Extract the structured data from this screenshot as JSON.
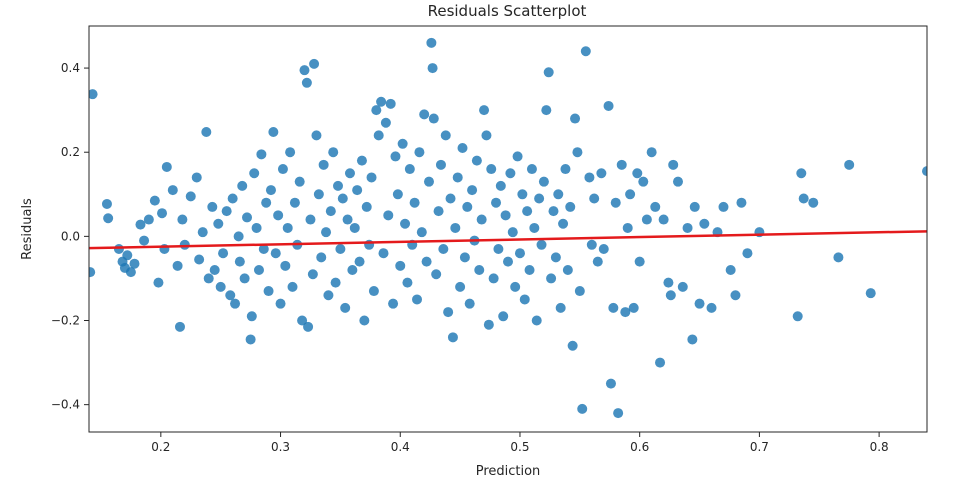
{
  "chart_data": {
    "type": "scatter",
    "title": "Residuals Scatterplot",
    "xlabel": "Prediction",
    "ylabel": "Residuals",
    "xlim": [
      0.14,
      0.84
    ],
    "ylim": [
      -0.465,
      0.5
    ],
    "xticks": [
      0.2,
      0.3,
      0.4,
      0.5,
      0.6,
      0.7,
      0.8
    ],
    "xtick_labels": [
      "0.2",
      "0.3",
      "0.4",
      "0.5",
      "0.6",
      "0.7",
      "0.8"
    ],
    "yticks": [
      -0.4,
      -0.2,
      0.0,
      0.2,
      0.4
    ],
    "ytick_labels": [
      "−0.4",
      "−0.2",
      "0.0",
      "0.2",
      "0.4"
    ],
    "grid": false,
    "marker_color": "#1f77b4",
    "fit_line_color": "#e41a1c",
    "fit_line": {
      "x": [
        0.14,
        0.84
      ],
      "y": [
        -0.028,
        0.012
      ]
    },
    "points": [
      [
        0.143,
        0.338
      ],
      [
        0.141,
        -0.085
      ],
      [
        0.155,
        0.077
      ],
      [
        0.156,
        0.043
      ],
      [
        0.165,
        -0.03
      ],
      [
        0.168,
        -0.06
      ],
      [
        0.17,
        -0.075
      ],
      [
        0.172,
        -0.045
      ],
      [
        0.175,
        -0.085
      ],
      [
        0.178,
        -0.065
      ],
      [
        0.183,
        0.028
      ],
      [
        0.186,
        -0.01
      ],
      [
        0.19,
        0.04
      ],
      [
        0.195,
        0.085
      ],
      [
        0.198,
        -0.11
      ],
      [
        0.201,
        0.055
      ],
      [
        0.203,
        -0.03
      ],
      [
        0.205,
        0.165
      ],
      [
        0.21,
        0.11
      ],
      [
        0.214,
        -0.07
      ],
      [
        0.216,
        -0.215
      ],
      [
        0.218,
        0.04
      ],
      [
        0.22,
        -0.02
      ],
      [
        0.225,
        0.095
      ],
      [
        0.23,
        0.14
      ],
      [
        0.232,
        -0.055
      ],
      [
        0.235,
        0.01
      ],
      [
        0.238,
        0.248
      ],
      [
        0.24,
        -0.1
      ],
      [
        0.243,
        0.07
      ],
      [
        0.245,
        -0.08
      ],
      [
        0.248,
        0.03
      ],
      [
        0.25,
        -0.12
      ],
      [
        0.252,
        -0.04
      ],
      [
        0.255,
        0.06
      ],
      [
        0.258,
        -0.14
      ],
      [
        0.26,
        0.09
      ],
      [
        0.262,
        -0.16
      ],
      [
        0.265,
        0.0
      ],
      [
        0.266,
        -0.06
      ],
      [
        0.268,
        0.12
      ],
      [
        0.27,
        -0.1
      ],
      [
        0.272,
        0.045
      ],
      [
        0.275,
        -0.245
      ],
      [
        0.276,
        -0.19
      ],
      [
        0.278,
        0.15
      ],
      [
        0.28,
        0.02
      ],
      [
        0.282,
        -0.08
      ],
      [
        0.284,
        0.195
      ],
      [
        0.286,
        -0.03
      ],
      [
        0.288,
        0.08
      ],
      [
        0.29,
        -0.13
      ],
      [
        0.292,
        0.11
      ],
      [
        0.294,
        0.248
      ],
      [
        0.296,
        -0.04
      ],
      [
        0.298,
        0.05
      ],
      [
        0.3,
        -0.16
      ],
      [
        0.302,
        0.16
      ],
      [
        0.304,
        -0.07
      ],
      [
        0.306,
        0.02
      ],
      [
        0.308,
        0.2
      ],
      [
        0.31,
        -0.12
      ],
      [
        0.312,
        0.08
      ],
      [
        0.314,
        -0.02
      ],
      [
        0.316,
        0.13
      ],
      [
        0.318,
        -0.2
      ],
      [
        0.32,
        0.395
      ],
      [
        0.322,
        0.365
      ],
      [
        0.323,
        -0.215
      ],
      [
        0.325,
        0.04
      ],
      [
        0.327,
        -0.09
      ],
      [
        0.328,
        0.41
      ],
      [
        0.33,
        0.24
      ],
      [
        0.332,
        0.1
      ],
      [
        0.334,
        -0.05
      ],
      [
        0.336,
        0.17
      ],
      [
        0.338,
        0.01
      ],
      [
        0.34,
        -0.14
      ],
      [
        0.342,
        0.06
      ],
      [
        0.344,
        0.2
      ],
      [
        0.346,
        -0.11
      ],
      [
        0.348,
        0.12
      ],
      [
        0.35,
        -0.03
      ],
      [
        0.352,
        0.09
      ],
      [
        0.354,
        -0.17
      ],
      [
        0.356,
        0.04
      ],
      [
        0.358,
        0.15
      ],
      [
        0.36,
        -0.08
      ],
      [
        0.362,
        0.02
      ],
      [
        0.364,
        0.11
      ],
      [
        0.366,
        -0.06
      ],
      [
        0.368,
        0.18
      ],
      [
        0.37,
        -0.2
      ],
      [
        0.372,
        0.07
      ],
      [
        0.374,
        -0.02
      ],
      [
        0.376,
        0.14
      ],
      [
        0.378,
        -0.13
      ],
      [
        0.38,
        0.3
      ],
      [
        0.382,
        0.24
      ],
      [
        0.384,
        0.32
      ],
      [
        0.386,
        -0.04
      ],
      [
        0.388,
        0.27
      ],
      [
        0.39,
        0.05
      ],
      [
        0.392,
        0.315
      ],
      [
        0.394,
        -0.16
      ],
      [
        0.396,
        0.19
      ],
      [
        0.398,
        0.1
      ],
      [
        0.4,
        -0.07
      ],
      [
        0.402,
        0.22
      ],
      [
        0.404,
        0.03
      ],
      [
        0.406,
        -0.11
      ],
      [
        0.408,
        0.16
      ],
      [
        0.41,
        -0.02
      ],
      [
        0.412,
        0.08
      ],
      [
        0.414,
        -0.15
      ],
      [
        0.416,
        0.2
      ],
      [
        0.418,
        0.01
      ],
      [
        0.42,
        0.29
      ],
      [
        0.422,
        -0.06
      ],
      [
        0.424,
        0.13
      ],
      [
        0.426,
        0.46
      ],
      [
        0.427,
        0.4
      ],
      [
        0.428,
        0.28
      ],
      [
        0.43,
        -0.09
      ],
      [
        0.432,
        0.06
      ],
      [
        0.434,
        0.17
      ],
      [
        0.436,
        -0.03
      ],
      [
        0.438,
        0.24
      ],
      [
        0.44,
        -0.18
      ],
      [
        0.442,
        0.09
      ],
      [
        0.444,
        -0.24
      ],
      [
        0.446,
        0.02
      ],
      [
        0.448,
        0.14
      ],
      [
        0.45,
        -0.12
      ],
      [
        0.452,
        0.21
      ],
      [
        0.454,
        -0.05
      ],
      [
        0.456,
        0.07
      ],
      [
        0.458,
        -0.16
      ],
      [
        0.46,
        0.11
      ],
      [
        0.462,
        -0.01
      ],
      [
        0.464,
        0.18
      ],
      [
        0.466,
        -0.08
      ],
      [
        0.468,
        0.04
      ],
      [
        0.47,
        0.3
      ],
      [
        0.472,
        0.24
      ],
      [
        0.474,
        -0.21
      ],
      [
        0.476,
        0.16
      ],
      [
        0.478,
        -0.1
      ],
      [
        0.48,
        0.08
      ],
      [
        0.482,
        -0.03
      ],
      [
        0.484,
        0.12
      ],
      [
        0.486,
        -0.19
      ],
      [
        0.488,
        0.05
      ],
      [
        0.49,
        -0.06
      ],
      [
        0.492,
        0.15
      ],
      [
        0.494,
        0.01
      ],
      [
        0.496,
        -0.12
      ],
      [
        0.498,
        0.19
      ],
      [
        0.5,
        -0.04
      ],
      [
        0.502,
        0.1
      ],
      [
        0.504,
        -0.15
      ],
      [
        0.506,
        0.06
      ],
      [
        0.508,
        -0.08
      ],
      [
        0.51,
        0.16
      ],
      [
        0.512,
        0.02
      ],
      [
        0.514,
        -0.2
      ],
      [
        0.516,
        0.09
      ],
      [
        0.518,
        -0.02
      ],
      [
        0.52,
        0.13
      ],
      [
        0.522,
        0.3
      ],
      [
        0.524,
        0.39
      ],
      [
        0.526,
        -0.1
      ],
      [
        0.528,
        0.06
      ],
      [
        0.53,
        -0.05
      ],
      [
        0.532,
        0.1
      ],
      [
        0.534,
        -0.17
      ],
      [
        0.536,
        0.03
      ],
      [
        0.538,
        0.16
      ],
      [
        0.54,
        -0.08
      ],
      [
        0.542,
        0.07
      ],
      [
        0.544,
        -0.26
      ],
      [
        0.546,
        0.28
      ],
      [
        0.548,
        0.2
      ],
      [
        0.55,
        -0.13
      ],
      [
        0.552,
        -0.41
      ],
      [
        0.555,
        0.44
      ],
      [
        0.558,
        0.14
      ],
      [
        0.56,
        -0.02
      ],
      [
        0.562,
        0.09
      ],
      [
        0.565,
        -0.06
      ],
      [
        0.568,
        0.15
      ],
      [
        0.57,
        -0.03
      ],
      [
        0.574,
        0.31
      ],
      [
        0.576,
        -0.35
      ],
      [
        0.578,
        -0.17
      ],
      [
        0.58,
        0.08
      ],
      [
        0.582,
        -0.42
      ],
      [
        0.585,
        0.17
      ],
      [
        0.588,
        -0.18
      ],
      [
        0.59,
        0.02
      ],
      [
        0.592,
        0.1
      ],
      [
        0.595,
        -0.17
      ],
      [
        0.598,
        0.15
      ],
      [
        0.6,
        -0.06
      ],
      [
        0.603,
        0.13
      ],
      [
        0.606,
        0.04
      ],
      [
        0.61,
        0.2
      ],
      [
        0.613,
        0.07
      ],
      [
        0.617,
        -0.3
      ],
      [
        0.62,
        0.04
      ],
      [
        0.624,
        -0.11
      ],
      [
        0.626,
        -0.14
      ],
      [
        0.628,
        0.17
      ],
      [
        0.632,
        0.13
      ],
      [
        0.636,
        -0.12
      ],
      [
        0.64,
        0.02
      ],
      [
        0.644,
        -0.245
      ],
      [
        0.646,
        0.07
      ],
      [
        0.65,
        -0.16
      ],
      [
        0.654,
        0.03
      ],
      [
        0.66,
        -0.17
      ],
      [
        0.665,
        0.01
      ],
      [
        0.67,
        0.07
      ],
      [
        0.676,
        -0.08
      ],
      [
        0.68,
        -0.14
      ],
      [
        0.685,
        0.08
      ],
      [
        0.69,
        -0.04
      ],
      [
        0.7,
        0.01
      ],
      [
        0.732,
        -0.19
      ],
      [
        0.735,
        0.15
      ],
      [
        0.737,
        0.09
      ],
      [
        0.745,
        0.08
      ],
      [
        0.766,
        -0.05
      ],
      [
        0.775,
        0.17
      ],
      [
        0.793,
        -0.135
      ],
      [
        0.84,
        0.155
      ]
    ]
  }
}
